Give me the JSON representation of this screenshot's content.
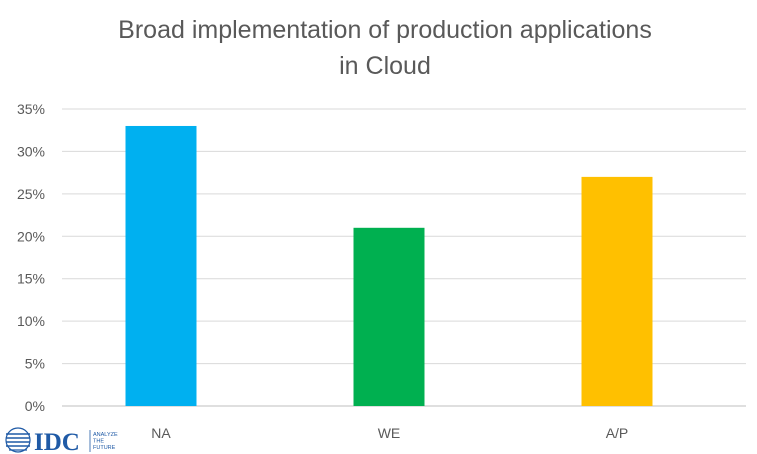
{
  "chart_data": {
    "type": "bar",
    "title": [
      "Broad implementation of production applications",
      "in Cloud"
    ],
    "categories": [
      "NA",
      "WE",
      "A/P"
    ],
    "values": [
      33,
      21,
      27
    ],
    "colors": [
      "#00b0f0",
      "#00b050",
      "#ffc000"
    ],
    "ylim": [
      0,
      35
    ],
    "yticks": [
      "0%",
      "5%",
      "10%",
      "15%",
      "20%",
      "25%",
      "30%",
      "35%"
    ],
    "ytick_values": [
      0,
      5,
      10,
      15,
      20,
      25,
      30,
      35
    ],
    "grid": true,
    "xlabel": "",
    "ylabel": ""
  },
  "logo": {
    "brand": "IDC",
    "tagline": [
      "ANALYZE",
      "THE",
      "FUTURE"
    ],
    "color": "#1f5aa6"
  }
}
